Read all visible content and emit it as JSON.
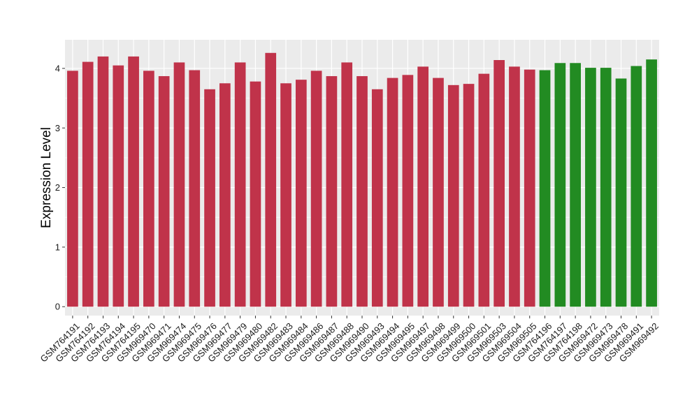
{
  "chart_data": {
    "type": "bar",
    "title": "",
    "xlabel": "",
    "ylabel": "Expression Level",
    "ylim": [
      -0.15,
      4.48
    ],
    "yticks": [
      0,
      1,
      2,
      3,
      4
    ],
    "grid": true,
    "legend": "none",
    "colors": {
      "group1": "#c0334a",
      "group2": "#228b22",
      "panel": "#ebebeb",
      "grid": "#ffffff"
    },
    "categories": [
      "GSM764191",
      "GSM764192",
      "GSM764193",
      "GSM764194",
      "GSM764195",
      "GSM969470",
      "GSM969471",
      "GSM969474",
      "GSM969475",
      "GSM969476",
      "GSM969477",
      "GSM969479",
      "GSM969480",
      "GSM969482",
      "GSM969483",
      "GSM969484",
      "GSM969486",
      "GSM969487",
      "GSM969488",
      "GSM969490",
      "GSM969493",
      "GSM969494",
      "GSM969495",
      "GSM969497",
      "GSM969498",
      "GSM969499",
      "GSM969500",
      "GSM969501",
      "GSM969503",
      "GSM969504",
      "GSM969505",
      "GSM764196",
      "GSM764197",
      "GSM764198",
      "GSM969472",
      "GSM969473",
      "GSM969478",
      "GSM969491",
      "GSM969492"
    ],
    "values": [
      3.96,
      4.11,
      4.2,
      4.05,
      4.2,
      3.96,
      3.87,
      4.1,
      3.97,
      3.65,
      3.75,
      4.1,
      3.78,
      4.26,
      3.75,
      3.81,
      3.96,
      3.87,
      4.1,
      3.87,
      3.65,
      3.84,
      3.89,
      4.03,
      3.84,
      3.72,
      3.74,
      3.91,
      4.14,
      4.03,
      3.98,
      3.97,
      4.09,
      4.09,
      4.01,
      4.01,
      3.83,
      4.04,
      4.15
    ],
    "groups": [
      1,
      1,
      1,
      1,
      1,
      1,
      1,
      1,
      1,
      1,
      1,
      1,
      1,
      1,
      1,
      1,
      1,
      1,
      1,
      1,
      1,
      1,
      1,
      1,
      1,
      1,
      1,
      1,
      1,
      1,
      1,
      2,
      2,
      2,
      2,
      2,
      2,
      2,
      2
    ]
  }
}
